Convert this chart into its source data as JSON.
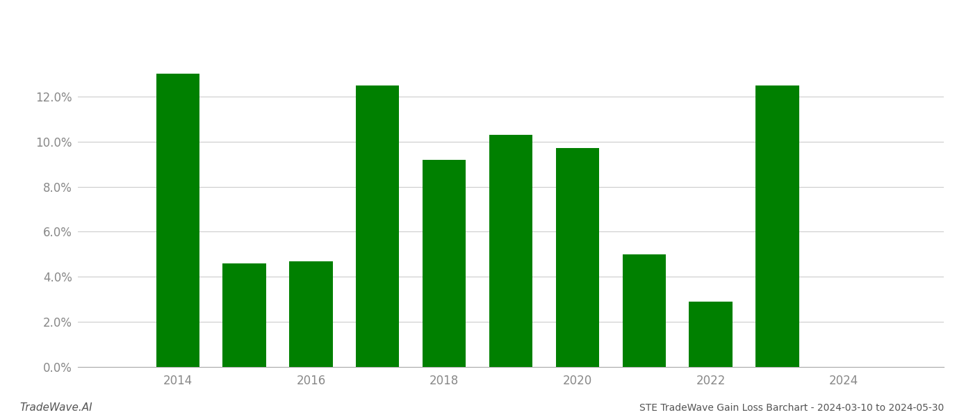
{
  "years": [
    2014,
    2015,
    2016,
    2017,
    2018,
    2019,
    2020,
    2021,
    2022,
    2023
  ],
  "values": [
    0.13,
    0.046,
    0.047,
    0.125,
    0.092,
    0.103,
    0.097,
    0.05,
    0.029,
    0.125
  ],
  "bar_color": "#008000",
  "background_color": "#ffffff",
  "grid_color": "#cccccc",
  "ylabel_color": "#888888",
  "xlabel_color": "#888888",
  "title": "STE TradeWave Gain Loss Barchart - 2024-03-10 to 2024-05-30",
  "watermark": "TradeWave.AI",
  "ylim_min": 0.0,
  "ylim_max": 0.148,
  "yticks": [
    0.0,
    0.02,
    0.04,
    0.06,
    0.08,
    0.1,
    0.12
  ],
  "xticks": [
    2014,
    2016,
    2018,
    2020,
    2022,
    2024
  ],
  "bar_width": 0.65
}
